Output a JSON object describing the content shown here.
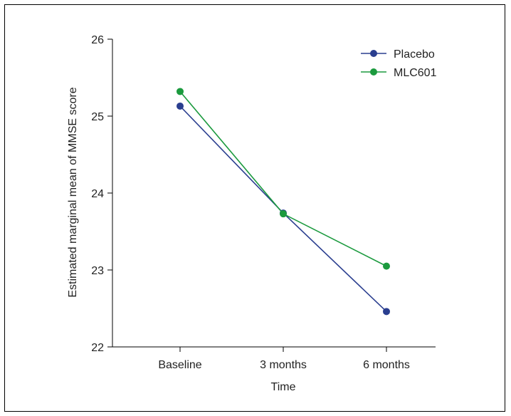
{
  "chart_data": {
    "type": "line",
    "title": "",
    "xlabel": "Time",
    "ylabel": "Estimated marginal mean of MMSE score",
    "categories": [
      "Baseline",
      "3 months",
      "6 months"
    ],
    "yticks": [
      "22",
      "23",
      "24",
      "25",
      "26"
    ],
    "ylim": [
      22,
      26
    ],
    "grid": false,
    "legend_position": "top-right",
    "series": [
      {
        "name": "Placebo",
        "color": "#2a3e8f",
        "values": [
          25.13,
          23.74,
          22.46
        ]
      },
      {
        "name": "MLC601",
        "color": "#1b9a3e",
        "values": [
          25.32,
          23.73,
          23.05
        ]
      }
    ]
  }
}
